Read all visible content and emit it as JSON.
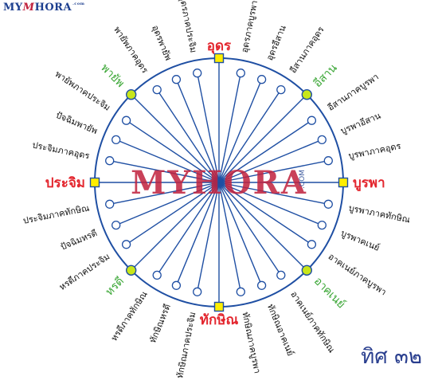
{
  "site_logo": {
    "prefix": "MY",
    "mark": "M",
    "name": "HORA",
    "domain": ".com"
  },
  "watermark": {
    "text": "MYHORA",
    "domain": ".COM"
  },
  "title": "ทิศ ๓๒",
  "colors": {
    "line": "#1f4fa3",
    "cardinal_fill": "#ffee00",
    "intercardinal_fill": "#c8e61a",
    "cardinal_text": "#e3262e",
    "intercardinal_text": "#3aa635",
    "minor_text": "#111111",
    "title": "#2a3f8f",
    "watermark_text": "#c0213d",
    "watermark_text_2": "#1d3f8f"
  },
  "directions": [
    {
      "label": "อุดร",
      "kind": "cardinal"
    },
    {
      "label": "อุดรภาคบูรพา",
      "kind": "minor"
    },
    {
      "label": "อุดรอีสาน",
      "kind": "minor"
    },
    {
      "label": "อีสานภาคอุดร",
      "kind": "minor"
    },
    {
      "label": "อีสาน",
      "kind": "intercardinal"
    },
    {
      "label": "อีสานภาคบูรพา",
      "kind": "minor"
    },
    {
      "label": "บูรพาอีสาน",
      "kind": "minor"
    },
    {
      "label": "บูรพาภาคอุดร",
      "kind": "minor"
    },
    {
      "label": "บูรพา",
      "kind": "cardinal"
    },
    {
      "label": "บูรพาภาคทักษิณ",
      "kind": "minor"
    },
    {
      "label": "บูรพาคเนย์",
      "kind": "minor"
    },
    {
      "label": "อาคเนย์ภาคบูรพา",
      "kind": "minor"
    },
    {
      "label": "อาคเนย์",
      "kind": "intercardinal"
    },
    {
      "label": "อาคเนย์ภาคทักษิณ",
      "kind": "minor"
    },
    {
      "label": "ทักษิณอาคเนย์",
      "kind": "minor"
    },
    {
      "label": "ทักษิณภาคบูรพา",
      "kind": "minor"
    },
    {
      "label": "ทักษิณ",
      "kind": "cardinal"
    },
    {
      "label": "ทักษิณภาคประจิม",
      "kind": "minor"
    },
    {
      "label": "ทักษิณหรดี",
      "kind": "minor"
    },
    {
      "label": "หรดีภาคทักษิณ",
      "kind": "minor"
    },
    {
      "label": "หรดี",
      "kind": "intercardinal"
    },
    {
      "label": "หรดีภาคประจิม",
      "kind": "minor"
    },
    {
      "label": "ปัจฉิมหรดี",
      "kind": "minor"
    },
    {
      "label": "ประจิมภาคทักษิณ",
      "kind": "minor"
    },
    {
      "label": "ประจิม",
      "kind": "cardinal"
    },
    {
      "label": "ประจิมภาคอุดร",
      "kind": "minor"
    },
    {
      "label": "ปัจฉิมพายัพ",
      "kind": "minor"
    },
    {
      "label": "พายัพภาคประจิม",
      "kind": "minor"
    },
    {
      "label": "พายัพ",
      "kind": "intercardinal"
    },
    {
      "label": "พายัพภาคอุดร",
      "kind": "minor"
    },
    {
      "label": "อุดรพายัพ",
      "kind": "minor"
    },
    {
      "label": "อุดรภาคประจิม",
      "kind": "minor"
    }
  ]
}
